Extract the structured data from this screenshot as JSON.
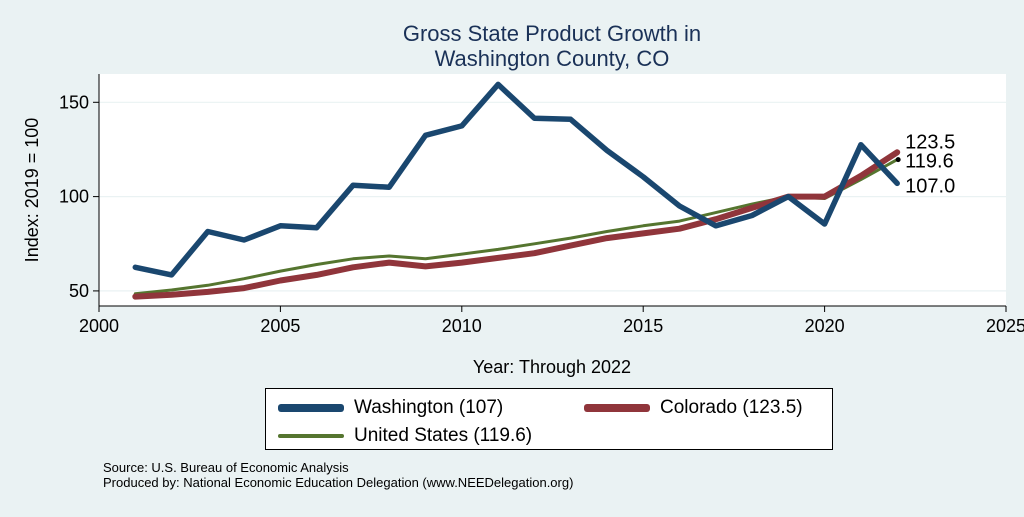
{
  "chart_data": {
    "type": "line",
    "title": [
      "Gross State Product Growth in",
      "Washington County, CO"
    ],
    "xlabel": "Year: Through 2022",
    "ylabel": "Index: 2019 = 100",
    "xlim": [
      2000,
      2025
    ],
    "ylim": [
      42,
      165
    ],
    "xticks": [
      2000,
      2005,
      2010,
      2015,
      2020,
      2025
    ],
    "yticks": [
      50,
      100,
      150
    ],
    "x": [
      2001,
      2002,
      2003,
      2004,
      2005,
      2006,
      2007,
      2008,
      2009,
      2010,
      2011,
      2012,
      2013,
      2014,
      2015,
      2016,
      2017,
      2018,
      2019,
      2020,
      2021,
      2022
    ],
    "series": [
      {
        "name": "Washington",
        "color": "#1a476f",
        "values": [
          62.5,
          58.5,
          81.5,
          77,
          84.5,
          83.5,
          106,
          105,
          132.5,
          137.5,
          159.5,
          141.5,
          141,
          124.5,
          110.5,
          95,
          84.5,
          90,
          100,
          85.5,
          127.5,
          107.0
        ]
      },
      {
        "name": "Colorado",
        "color": "#90353b",
        "values": [
          47,
          48,
          49.5,
          51.5,
          55.5,
          58.5,
          62.5,
          65,
          63,
          65,
          67.5,
          70,
          74,
          78,
          80.5,
          83,
          88,
          94,
          100,
          100,
          111,
          123.5
        ]
      },
      {
        "name": "United States",
        "color": "#55752f",
        "values": [
          48.5,
          50.5,
          53,
          56.5,
          60.5,
          64,
          67,
          68.5,
          67,
          69.5,
          72,
          75,
          78,
          81.5,
          84.5,
          87,
          91.5,
          96,
          100,
          99,
          109,
          119.6
        ]
      }
    ],
    "end_labels": [
      {
        "series": "Colorado",
        "text": "123.5",
        "value": 123.5
      },
      {
        "series": "United States",
        "text": "119.6",
        "value": 119.6
      },
      {
        "series": "Washington",
        "text": "107.0",
        "value": 107.0
      }
    ],
    "legend": [
      {
        "series": "Washington",
        "label": "Washington  (107)"
      },
      {
        "series": "Colorado",
        "label": "Colorado (123.5)"
      },
      {
        "series": "United States",
        "label": "United States (119.6)"
      }
    ],
    "grid": true
  },
  "footer": {
    "source": "Source: U.S. Bureau of Economic Analysis",
    "produced": "Produced by: National Economic Education Delegation (www.NEEDelegation.org)"
  }
}
